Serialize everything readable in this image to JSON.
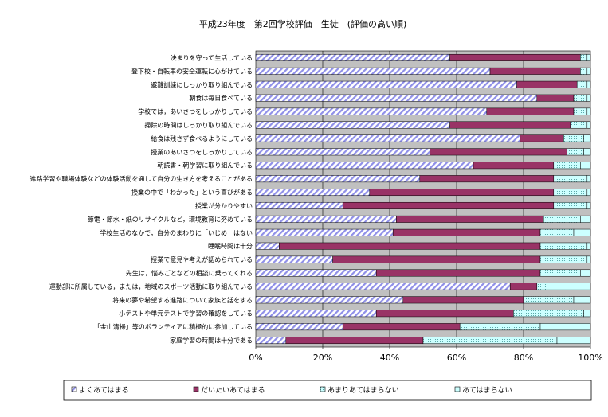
{
  "chart_data": {
    "type": "bar",
    "orientation": "horizontal",
    "stacked": true,
    "title": "平成23年度　第2回学校評価　生徒　(評価の高い順)",
    "xlim": [
      0,
      100
    ],
    "x_ticks": [
      "0%",
      "20%",
      "40%",
      "60%",
      "80%",
      "100%"
    ],
    "grid": true,
    "legend_position": "bottom",
    "categories": [
      "決まりを守って生活している",
      "登下校・自転車の安全運転に心がけている",
      "避難訓練にしっかり取り組んでいる",
      "朝食は毎日食べている",
      "学校では，あいさつをしっかりしている",
      "掃除の時間はしっかり取り組んでいる",
      "給食は残さず食べるようにしている",
      "授業のあいさつをしっかりしている",
      "朝読書・朝学習に取り組んでいる",
      "進路学習や職場体験などの体験活動を通して自分の生き方を考えることがある",
      "授業の中で「わかった」という喜びがある",
      "授業が分かりやすい",
      "節電・節水・紙のリサイクルなど，環境教育に努めている",
      "学校生活のなかで，自分のまわりに「いじめ」はない",
      "睡眠時間は十分",
      "授業で意見や考えが認められている",
      "先生は，悩みごとなどの相談に乗ってくれる",
      "運動部に所属している，または，地域のスポーツ活動に取り組んでいる",
      "将来の夢や希望する進路について家族と話をする",
      "小テストや単元テストで学習の確認をしている",
      "「金山清掃」等のボランティアに積極的に参加している",
      "家庭学習の時間は十分である"
    ],
    "series": [
      {
        "name": "よくあてはまる",
        "color": "#9999ff",
        "pattern": "diagonal",
        "values": [
          58,
          70,
          78,
          84,
          69,
          58,
          79,
          52,
          65,
          49,
          34,
          26,
          42,
          41,
          7,
          23,
          36,
          76,
          44,
          36,
          26,
          9
        ]
      },
      {
        "name": "だいたいあてはまる",
        "color": "#993366",
        "pattern": "solid",
        "values": [
          39,
          27,
          18,
          11,
          26,
          36,
          13,
          41,
          24,
          40,
          55,
          63,
          44,
          44,
          78,
          62,
          49,
          8,
          36,
          41,
          35,
          41
        ]
      },
      {
        "name": "あまりあてはまらない",
        "color": "#ccffff",
        "pattern": "dotted",
        "values": [
          2,
          2,
          3,
          4,
          4,
          5,
          6,
          5,
          8,
          10,
          10,
          10,
          11,
          10,
          14,
          14,
          12,
          3,
          15,
          21,
          24,
          40
        ]
      },
      {
        "name": "あてはまらない",
        "color": "#ccffff",
        "pattern": "plain",
        "values": [
          1,
          1,
          1,
          1,
          1,
          1,
          2,
          2,
          3,
          1,
          1,
          1,
          3,
          5,
          1,
          1,
          3,
          13,
          5,
          2,
          15,
          10
        ]
      }
    ]
  }
}
